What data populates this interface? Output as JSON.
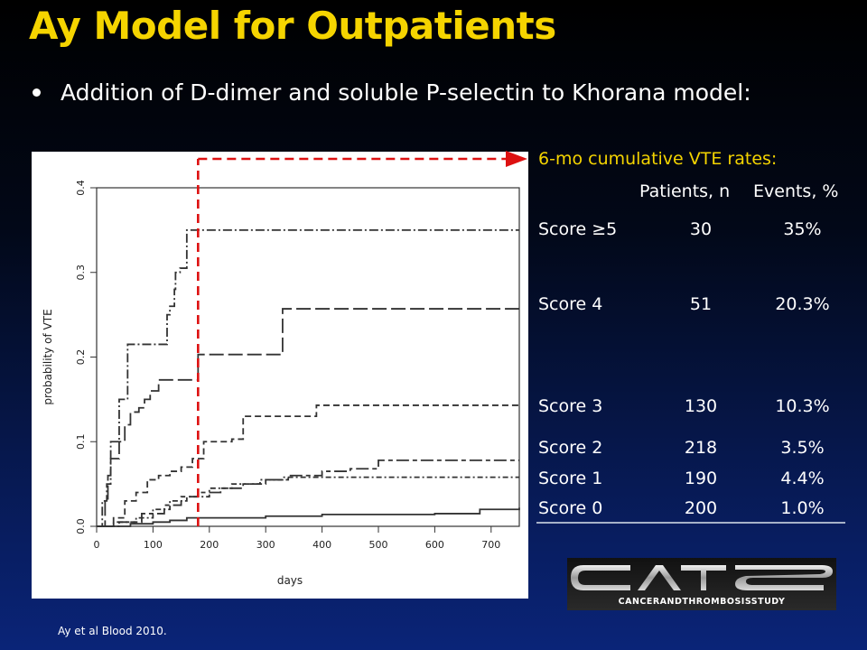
{
  "slide": {
    "title": "Ay Model for Outpatients",
    "bullet": "Addition of D-dimer and soluble P-selectin to Khorana model:",
    "citation": "Ay et al Blood 2010."
  },
  "table": {
    "title": "6-mo cumulative VTE rates:",
    "col_patients": "Patients, n",
    "col_events": "Events, %",
    "rows": [
      {
        "label": "Score ≥5",
        "patients": "30",
        "events": "35%"
      },
      {
        "label": "Score 4",
        "patients": "51",
        "events": "20.3%"
      },
      {
        "label": "Score 3",
        "patients": "130",
        "events": "10.3%"
      },
      {
        "label": "Score 2",
        "patients": "218",
        "events": "3.5%"
      },
      {
        "label": "Score 1",
        "patients": "190",
        "events": "4.4%"
      },
      {
        "label": "Score 0",
        "patients": "200",
        "events": "1.0%"
      }
    ]
  },
  "logo": {
    "text": "CATS",
    "subtitle": "CANCERANDTHROMBOSISSTUDY"
  },
  "chart_data": {
    "type": "line",
    "step": true,
    "xlabel": "days",
    "ylabel": "probability of VTE",
    "xlim": [
      0,
      750
    ],
    "ylim": [
      0,
      0.4
    ],
    "xticks": [
      0,
      100,
      200,
      300,
      400,
      500,
      600,
      700
    ],
    "yticks": [
      0.0,
      0.1,
      0.2,
      0.3,
      0.4
    ],
    "reference_day": 180,
    "colors": {
      "curves": "#333333",
      "reference": "#dd1111"
    },
    "series": [
      {
        "style": "dash-dot",
        "x": [
          0,
          10,
          18,
          25,
          32,
          40,
          55,
          90,
          120,
          125,
          130,
          138,
          140,
          148,
          160,
          170,
          180,
          750
        ],
        "y": [
          0,
          0.03,
          0.05,
          0.1,
          0.1,
          0.15,
          0.215,
          0.215,
          0.215,
          0.25,
          0.26,
          0.28,
          0.3,
          0.305,
          0.35,
          0.35,
          0.35,
          0.35
        ]
      },
      {
        "style": "long-dash",
        "x": [
          0,
          15,
          20,
          25,
          40,
          50,
          60,
          75,
          85,
          95,
          110,
          140,
          165,
          180,
          330,
          750
        ],
        "y": [
          0,
          0.03,
          0.06,
          0.08,
          0.1,
          0.12,
          0.135,
          0.14,
          0.15,
          0.16,
          0.173,
          0.173,
          0.173,
          0.203,
          0.257,
          0.257
        ]
      },
      {
        "style": "dash-short",
        "x": [
          0,
          30,
          50,
          70,
          90,
          110,
          130,
          150,
          170,
          190,
          240,
          260,
          390,
          750
        ],
        "y": [
          0,
          0.01,
          0.03,
          0.04,
          0.055,
          0.06,
          0.065,
          0.07,
          0.08,
          0.1,
          0.103,
          0.13,
          0.143,
          0.143
        ]
      },
      {
        "style": "dash-long-short",
        "x": [
          0,
          30,
          80,
          120,
          150,
          180,
          220,
          260,
          300,
          340,
          400,
          450,
          500,
          750
        ],
        "y": [
          0,
          0.005,
          0.015,
          0.025,
          0.035,
          0.04,
          0.045,
          0.05,
          0.055,
          0.06,
          0.065,
          0.068,
          0.078,
          0.078
        ]
      },
      {
        "style": "dotted",
        "x": [
          0,
          40,
          70,
          100,
          130,
          160,
          200,
          240,
          290,
          330,
          400,
          750
        ],
        "y": [
          0,
          0.005,
          0.01,
          0.02,
          0.03,
          0.035,
          0.045,
          0.05,
          0.055,
          0.058,
          0.058,
          0.058
        ]
      },
      {
        "style": "solid",
        "x": [
          0,
          60,
          100,
          130,
          160,
          300,
          400,
          600,
          680,
          750
        ],
        "y": [
          0,
          0.003,
          0.005,
          0.007,
          0.01,
          0.012,
          0.014,
          0.015,
          0.02,
          0.022
        ]
      }
    ]
  }
}
